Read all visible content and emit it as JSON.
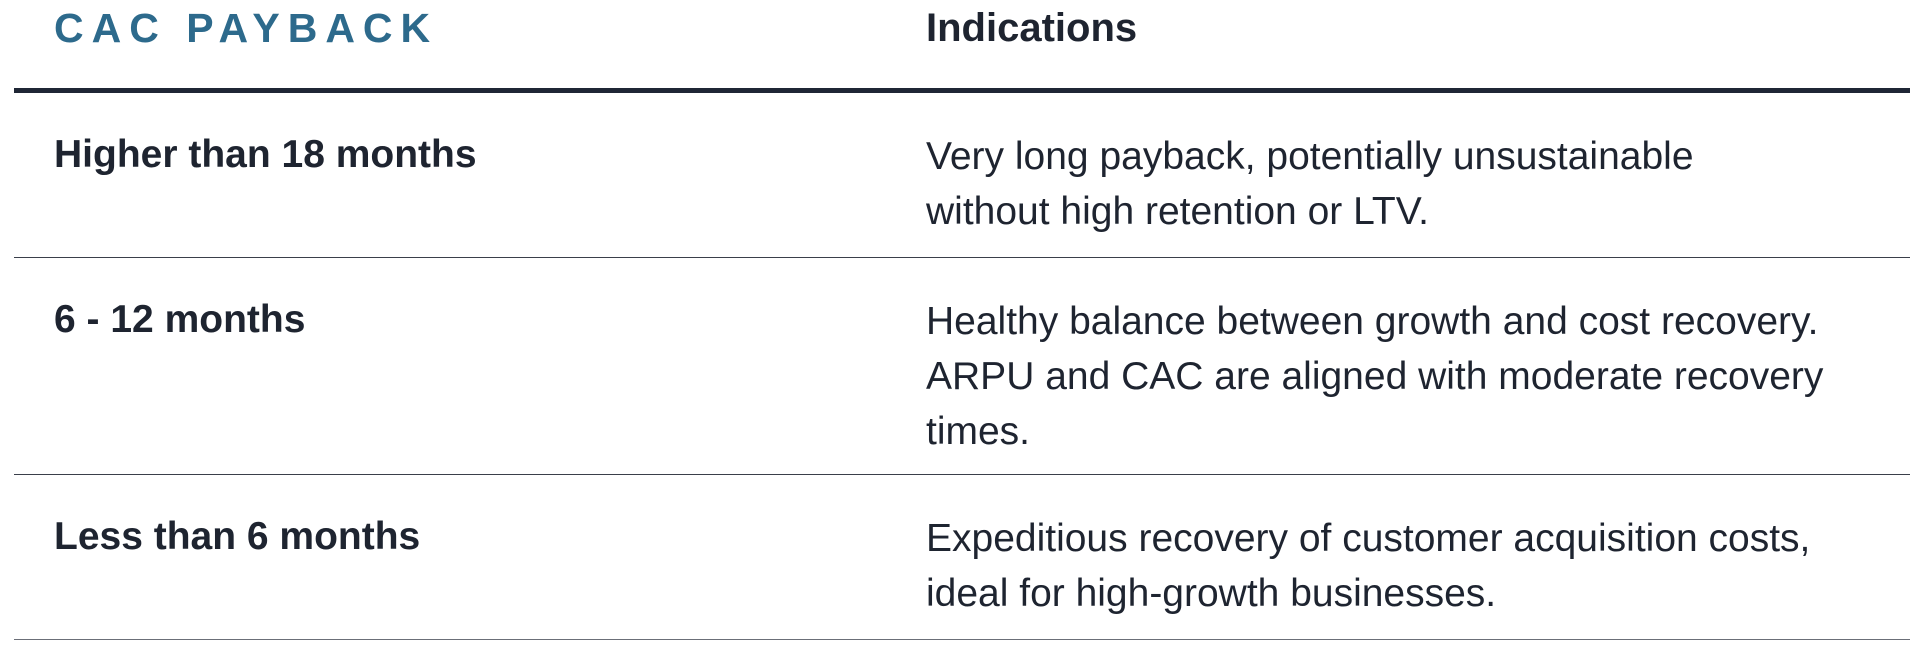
{
  "header": {
    "col1": "CAC PAYBACK",
    "col2": "Indications"
  },
  "rows": [
    {
      "payback": "Higher than 18 months",
      "indication": "Very long payback, potentially unsustainable without high retention or LTV."
    },
    {
      "payback": "6 - 12 months",
      "indication": "Healthy balance between growth and cost recovery. ARPU and CAC are aligned with moderate recovery times."
    },
    {
      "payback": "Less than 6 months",
      "indication": "Expeditious recovery of customer acquisition costs, ideal for high-growth businesses."
    }
  ],
  "colors": {
    "header_accent": "#2d6a8c",
    "text": "#1e2430"
  }
}
